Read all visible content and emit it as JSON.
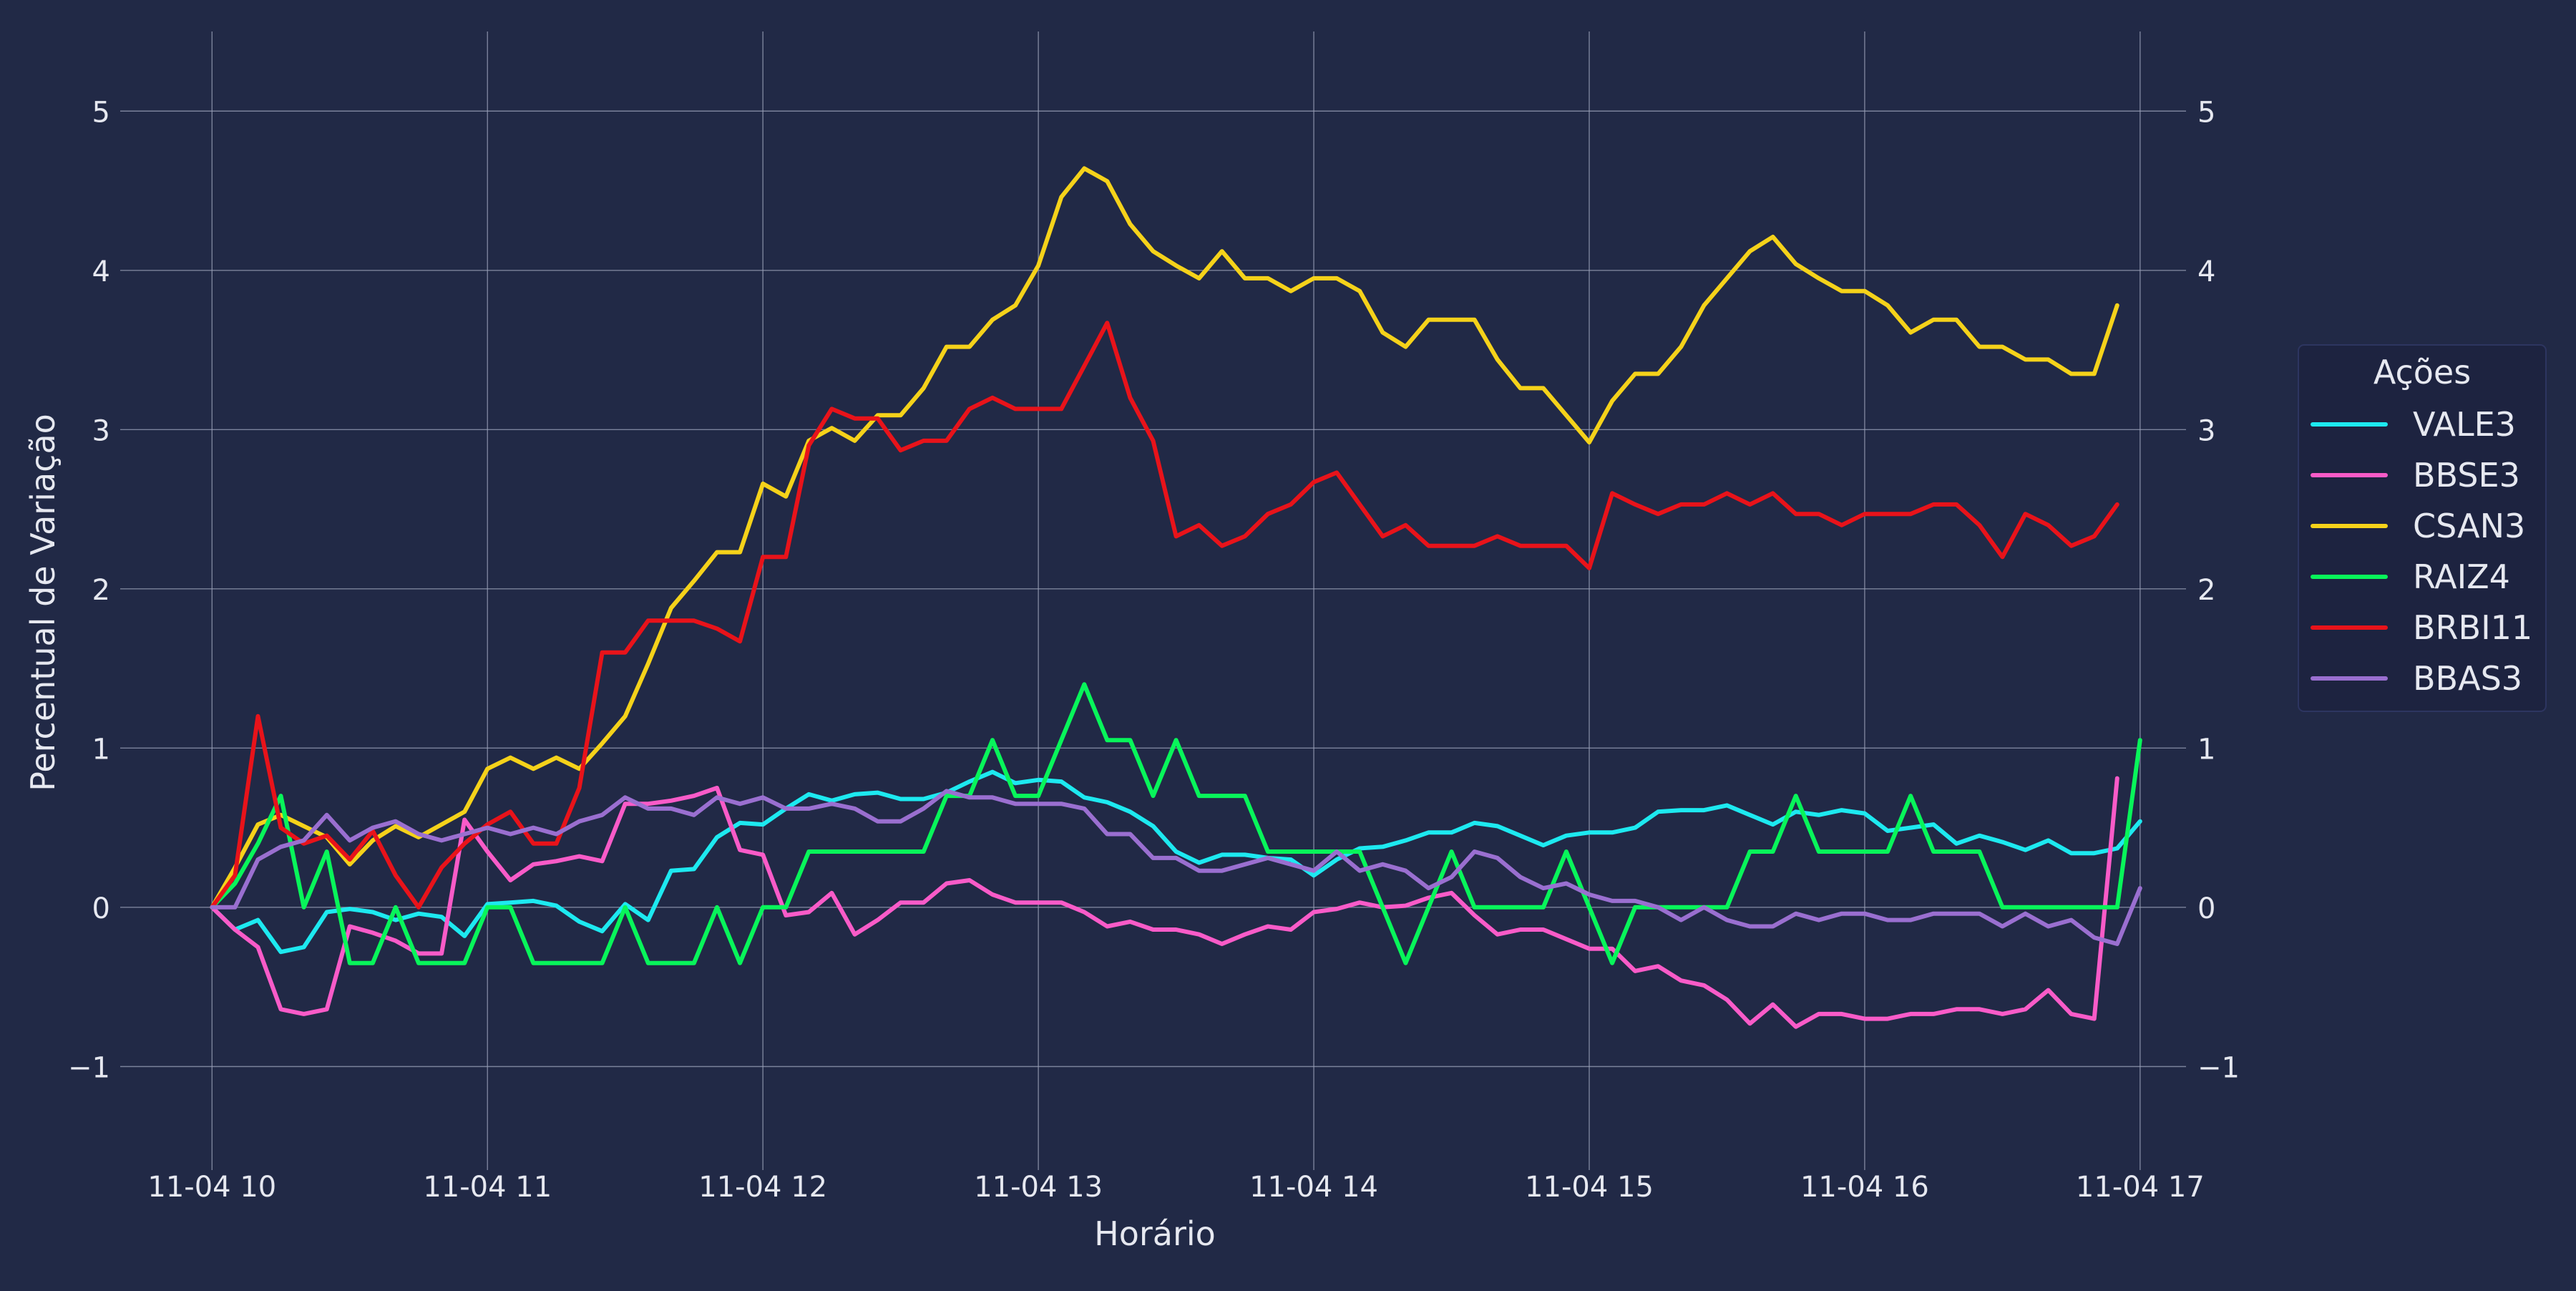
{
  "colors": {
    "background": "#212946",
    "grid": "#9aa0b8",
    "text": "#e6e8f0",
    "legend_bg": "#1d2340"
  },
  "chart_data": {
    "type": "line",
    "xlabel": "Horário",
    "ylabel": "Percentual de Variação",
    "x_tick_labels": [
      "11-04 10",
      "11-04 11",
      "11-04 12",
      "11-04 13",
      "11-04 14",
      "11-04 15",
      "11-04 16",
      "11-04 17"
    ],
    "y_ticks": [
      -1,
      0,
      1,
      2,
      3,
      4,
      5
    ],
    "y_tick_labels": [
      "−1",
      "0",
      "1",
      "2",
      "3",
      "4",
      "5"
    ],
    "xlim": [
      "2024-11-04 09:40",
      "2024-11-04 17:10"
    ],
    "ylim": [
      -1.65,
      5.5
    ],
    "grid": true,
    "secondary_y_axis": true,
    "legend": {
      "title": "Ações",
      "placement": "center-right-outside"
    },
    "x_interval_minutes": 5,
    "x_start": "2024-11-04 10:00",
    "series": [
      {
        "name": "VALE3",
        "color": "#1de9f0",
        "values": [
          0.0,
          -0.14,
          -0.08,
          -0.28,
          -0.25,
          -0.03,
          -0.01,
          -0.03,
          -0.08,
          -0.04,
          -0.06,
          -0.18,
          0.02,
          0.03,
          0.04,
          0.01,
          -0.09,
          -0.15,
          0.02,
          -0.08,
          0.23,
          0.24,
          0.44,
          0.53,
          0.52,
          0.62,
          0.71,
          0.67,
          0.71,
          0.72,
          0.68,
          0.68,
          0.72,
          0.79,
          0.85,
          0.78,
          0.8,
          0.79,
          0.69,
          0.66,
          0.6,
          0.51,
          0.35,
          0.28,
          0.33,
          0.33,
          0.31,
          0.3,
          0.2,
          0.3,
          0.37,
          0.38,
          0.42,
          0.47,
          0.47,
          0.53,
          0.51,
          0.45,
          0.39,
          0.45,
          0.47,
          0.47,
          0.5,
          0.6,
          0.61,
          0.61,
          0.64,
          0.58,
          0.52,
          0.6,
          0.58,
          0.61,
          0.59,
          0.48,
          0.5,
          0.52,
          0.4,
          0.45,
          0.41,
          0.36,
          0.42,
          0.34,
          0.34,
          0.37,
          0.54
        ]
      },
      {
        "name": "BBSE3",
        "color": "#f95bc8",
        "values": [
          0.0,
          -0.14,
          -0.25,
          -0.64,
          -0.67,
          -0.64,
          -0.12,
          -0.16,
          -0.21,
          -0.29,
          -0.29,
          0.55,
          0.35,
          0.17,
          0.27,
          0.29,
          0.32,
          0.29,
          0.65,
          0.65,
          0.67,
          0.7,
          0.75,
          0.36,
          0.33,
          -0.05,
          -0.03,
          0.09,
          -0.17,
          -0.08,
          0.03,
          0.03,
          0.15,
          0.17,
          0.08,
          0.03,
          0.03,
          0.03,
          -0.03,
          -0.12,
          -0.09,
          -0.14,
          -0.14,
          -0.17,
          -0.23,
          -0.17,
          -0.12,
          -0.14,
          -0.03,
          -0.01,
          0.03,
          0.0,
          0.01,
          0.06,
          0.09,
          -0.05,
          -0.17,
          -0.14,
          -0.14,
          -0.2,
          -0.26,
          -0.26,
          -0.4,
          -0.37,
          -0.46,
          -0.49,
          -0.58,
          -0.73,
          -0.61,
          -0.75,
          -0.67,
          -0.67,
          -0.7,
          -0.7,
          -0.67,
          -0.67,
          -0.64,
          -0.64,
          -0.67,
          -0.64,
          -0.52,
          -0.67,
          -0.7,
          0.81
        ]
      },
      {
        "name": "CSAN3",
        "color": "#f5d21a",
        "values": [
          0.0,
          0.25,
          0.52,
          0.58,
          0.51,
          0.44,
          0.27,
          0.42,
          0.51,
          0.44,
          0.52,
          0.6,
          0.87,
          0.94,
          0.87,
          0.94,
          0.87,
          1.03,
          1.2,
          1.53,
          1.88,
          2.05,
          2.23,
          2.23,
          2.66,
          2.58,
          2.93,
          3.01,
          2.93,
          3.09,
          3.09,
          3.26,
          3.52,
          3.52,
          3.69,
          3.78,
          4.03,
          4.46,
          4.64,
          4.56,
          4.29,
          4.12,
          4.03,
          3.95,
          4.12,
          3.95,
          3.95,
          3.87,
          3.95,
          3.95,
          3.87,
          3.61,
          3.52,
          3.69,
          3.69,
          3.69,
          3.44,
          3.26,
          3.26,
          3.09,
          2.92,
          3.18,
          3.35,
          3.35,
          3.52,
          3.78,
          3.95,
          4.12,
          4.21,
          4.04,
          3.95,
          3.87,
          3.87,
          3.78,
          3.61,
          3.69,
          3.69,
          3.52,
          3.52,
          3.44,
          3.44,
          3.35,
          3.35,
          3.78
        ]
      },
      {
        "name": "RAIZ4",
        "color": "#08f55a",
        "values": [
          0.0,
          0.15,
          0.4,
          0.7,
          0.0,
          0.35,
          -0.35,
          -0.35,
          0.0,
          -0.35,
          -0.35,
          -0.35,
          0.0,
          0.0,
          -0.35,
          -0.35,
          -0.35,
          -0.35,
          0.0,
          -0.35,
          -0.35,
          -0.35,
          0.0,
          -0.35,
          0.0,
          0.0,
          0.35,
          0.35,
          0.35,
          0.35,
          0.35,
          0.35,
          0.7,
          0.7,
          1.05,
          0.7,
          0.7,
          1.05,
          1.4,
          1.05,
          1.05,
          0.7,
          1.05,
          0.7,
          0.7,
          0.7,
          0.35,
          0.35,
          0.35,
          0.35,
          0.35,
          0.0,
          -0.35,
          0.0,
          0.35,
          0.0,
          0.0,
          0.0,
          0.0,
          0.35,
          0.0,
          -0.35,
          0.0,
          0.0,
          0.0,
          0.0,
          0.0,
          0.35,
          0.35,
          0.7,
          0.35,
          0.35,
          0.35,
          0.35,
          0.7,
          0.35,
          0.35,
          0.35,
          0.0,
          0.0,
          0.0,
          0.0,
          0.0,
          0.0,
          1.05
        ]
      },
      {
        "name": "BRBI11",
        "color": "#e8131a",
        "values": [
          0.0,
          0.2,
          1.2,
          0.5,
          0.4,
          0.45,
          0.3,
          0.48,
          0.2,
          0.0,
          0.25,
          0.4,
          0.52,
          0.6,
          0.4,
          0.4,
          0.75,
          1.6,
          1.6,
          1.8,
          1.8,
          1.8,
          1.75,
          1.67,
          2.2,
          2.2,
          2.9,
          3.13,
          3.07,
          3.07,
          2.87,
          2.93,
          2.93,
          3.13,
          3.2,
          3.13,
          3.13,
          3.13,
          3.4,
          3.67,
          3.2,
          2.93,
          2.33,
          2.4,
          2.27,
          2.33,
          2.47,
          2.53,
          2.67,
          2.73,
          2.53,
          2.33,
          2.4,
          2.27,
          2.27,
          2.27,
          2.33,
          2.27,
          2.27,
          2.27,
          2.13,
          2.6,
          2.53,
          2.47,
          2.53,
          2.53,
          2.6,
          2.53,
          2.6,
          2.47,
          2.47,
          2.4,
          2.47,
          2.47,
          2.47,
          2.53,
          2.53,
          2.4,
          2.2,
          2.47,
          2.4,
          2.27,
          2.33,
          2.53
        ]
      },
      {
        "name": "BBAS3",
        "color": "#9a6fd0",
        "values": [
          0.0,
          0.0,
          0.3,
          0.38,
          0.42,
          0.58,
          0.42,
          0.5,
          0.54,
          0.46,
          0.42,
          0.46,
          0.5,
          0.46,
          0.5,
          0.46,
          0.54,
          0.58,
          0.69,
          0.62,
          0.62,
          0.58,
          0.69,
          0.65,
          0.69,
          0.62,
          0.62,
          0.65,
          0.62,
          0.54,
          0.54,
          0.62,
          0.73,
          0.69,
          0.69,
          0.65,
          0.65,
          0.65,
          0.62,
          0.46,
          0.46,
          0.31,
          0.31,
          0.23,
          0.23,
          0.27,
          0.31,
          0.27,
          0.23,
          0.35,
          0.23,
          0.27,
          0.23,
          0.12,
          0.19,
          0.35,
          0.31,
          0.19,
          0.12,
          0.15,
          0.08,
          0.04,
          0.04,
          0.0,
          -0.08,
          0.0,
          -0.08,
          -0.12,
          -0.12,
          -0.04,
          -0.08,
          -0.04,
          -0.04,
          -0.08,
          -0.08,
          -0.04,
          -0.04,
          -0.04,
          -0.12,
          -0.04,
          -0.12,
          -0.08,
          -0.19,
          -0.23,
          0.12
        ]
      }
    ]
  }
}
